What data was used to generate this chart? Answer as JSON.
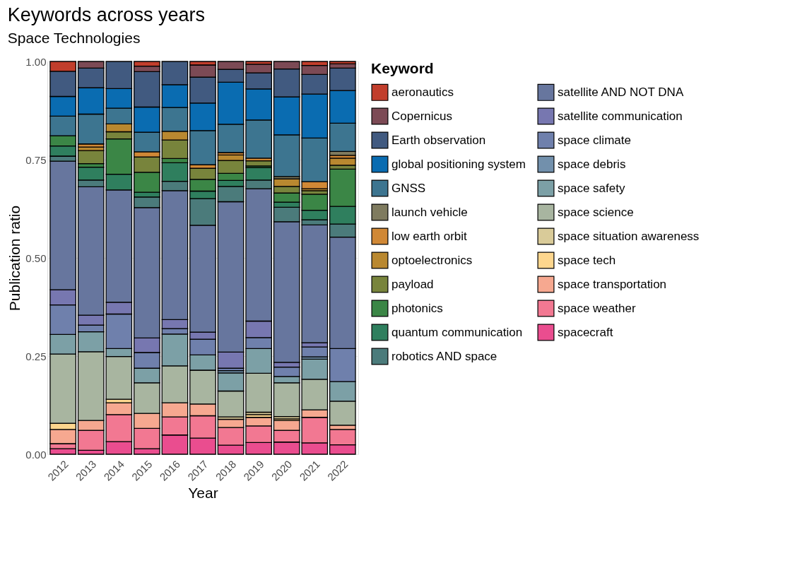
{
  "chart_data": {
    "type": "bar",
    "stacked": true,
    "title": "Keywords across years",
    "subtitle": "Space Technologies",
    "xlabel": "Year",
    "ylabel": "Publication ratio",
    "legend_title": "Keyword",
    "legend": "right",
    "grid": true,
    "categories": [
      "2012",
      "2013",
      "2014",
      "2015",
      "2016",
      "2017",
      "2018",
      "2019",
      "2020",
      "2021",
      "2022"
    ],
    "ylim": [
      0,
      1
    ],
    "yticks": [
      {
        "value": 0,
        "label": "0.00"
      },
      {
        "value": 0.25,
        "label": "0.25"
      },
      {
        "value": 0.5,
        "label": "0.50"
      },
      {
        "value": 0.75,
        "label": "0.75"
      },
      {
        "value": 1,
        "label": "1.00"
      }
    ],
    "series": [
      {
        "name": "spacecraft",
        "color": "#ea4d8f",
        "values": [
          0.014,
          0.01,
          0.032,
          0.014,
          0.049,
          0.041,
          0.023,
          0.03,
          0.031,
          0.029,
          0.024
        ]
      },
      {
        "name": "space weather",
        "color": "#f27892",
        "values": [
          0.013,
          0.051,
          0.069,
          0.052,
          0.046,
          0.057,
          0.045,
          0.042,
          0.03,
          0.065,
          0.039
        ]
      },
      {
        "name": "space transportation",
        "color": "#f6a890",
        "values": [
          0.036,
          0.025,
          0.03,
          0.038,
          0.036,
          0.03,
          0.021,
          0.022,
          0.025,
          0.019,
          0.011
        ]
      },
      {
        "name": "space tech",
        "color": "#fdd68e",
        "values": [
          0.016,
          null,
          0.009,
          null,
          null,
          null,
          null,
          0.007,
          0.004,
          null,
          null
        ]
      },
      {
        "name": "space situation awareness",
        "color": "#d9cb99",
        "values": [
          null,
          null,
          null,
          null,
          null,
          null,
          0.006,
          0.006,
          0.006,
          null,
          null
        ]
      },
      {
        "name": "space science",
        "color": "#a8b5a0",
        "values": [
          0.176,
          0.175,
          0.109,
          0.078,
          0.094,
          0.086,
          0.066,
          0.099,
          0.086,
          0.078,
          0.061
        ]
      },
      {
        "name": "space safety",
        "color": "#7ca0a6",
        "values": [
          0.05,
          0.051,
          0.02,
          0.037,
          0.081,
          0.039,
          0.046,
          0.063,
          0.016,
          0.051,
          0.05
        ]
      },
      {
        "name": "space debris",
        "color": "#7290ac",
        "values": [
          null,
          null,
          null,
          null,
          null,
          null,
          0.006,
          null,
          null,
          0.006,
          null
        ]
      },
      {
        "name": "space climate",
        "color": "#6f80ac",
        "values": [
          0.075,
          0.017,
          0.088,
          0.04,
          0.014,
          0.04,
          0.006,
          0.028,
          0.024,
          0.025,
          0.084
        ]
      },
      {
        "name": "satellite communication",
        "color": "#7777b0",
        "values": [
          0.039,
          0.025,
          0.03,
          0.037,
          0.023,
          0.018,
          0.041,
          0.042,
          0.012,
          0.011,
          null
        ]
      },
      {
        "name": "satellite AND NOT DNA",
        "color": "#67769e",
        "values": [
          0.327,
          0.327,
          0.286,
          0.332,
          0.328,
          0.272,
          0.383,
          0.337,
          0.358,
          0.3,
          0.284
        ]
      },
      {
        "name": "robotics AND space",
        "color": "#4b7b7b",
        "values": [
          0.013,
          0.017,
          null,
          0.027,
          0.024,
          0.068,
          0.039,
          0.022,
          0.037,
          0.013,
          0.033
        ]
      },
      {
        "name": "quantum communication",
        "color": "#2f7f5e",
        "values": [
          0.026,
          0.033,
          0.04,
          0.012,
          0.047,
          0.019,
          0.015,
          0.032,
          0.013,
          0.024,
          0.045
        ]
      },
      {
        "name": "photonics",
        "color": "#3b8646",
        "values": [
          0.026,
          0.009,
          0.09,
          0.051,
          0.011,
          0.03,
          0.018,
          0.004,
          0.023,
          0.041,
          0.095
        ]
      },
      {
        "name": "payload",
        "color": "#78843c",
        "values": [
          null,
          0.033,
          0.018,
          0.039,
          0.047,
          0.028,
          0.033,
          0.013,
          0.017,
          0.009,
          0.01
        ]
      },
      {
        "name": "optoelectronics",
        "color": "#b98830",
        "values": [
          null,
          0.009,
          0.02,
          null,
          0.022,
          null,
          0.014,
          null,
          0.019,
          0.005,
          0.018
        ]
      },
      {
        "name": "low earth orbit",
        "color": "#d08836",
        "values": [
          null,
          0.008,
          null,
          0.013,
          null,
          0.009,
          0.006,
          0.007,
          null,
          0.018,
          0.007
        ]
      },
      {
        "name": "launch vehicle",
        "color": "#7f7b5f",
        "values": [
          null,
          null,
          null,
          null,
          null,
          null,
          null,
          null,
          0.006,
          null,
          0.01
        ]
      },
      {
        "name": "GNSS",
        "color": "#3d7590",
        "values": [
          0.05,
          0.076,
          0.04,
          0.05,
          0.061,
          0.087,
          0.072,
          0.097,
          0.106,
          0.111,
          0.072
        ]
      },
      {
        "name": "global positioning system",
        "color": "#0a6cb1",
        "values": [
          0.05,
          0.067,
          0.05,
          0.064,
          0.058,
          0.07,
          0.107,
          0.079,
          0.097,
          0.112,
          0.083
        ]
      },
      {
        "name": "Earth observation",
        "color": "#415a80",
        "values": [
          0.064,
          0.05,
          0.069,
          0.09,
          0.059,
          0.066,
          0.033,
          0.041,
          0.071,
          0.05,
          0.057
        ]
      },
      {
        "name": "Copernicus",
        "color": "#7c4a55",
        "values": [
          null,
          0.017,
          null,
          0.014,
          null,
          0.031,
          0.02,
          0.022,
          0.019,
          0.023,
          0.011
        ]
      },
      {
        "name": "aeronautics",
        "color": "#c13e2c",
        "values": [
          0.025,
          null,
          null,
          0.012,
          null,
          0.009,
          null,
          0.007,
          null,
          0.01,
          0.006
        ]
      }
    ]
  }
}
